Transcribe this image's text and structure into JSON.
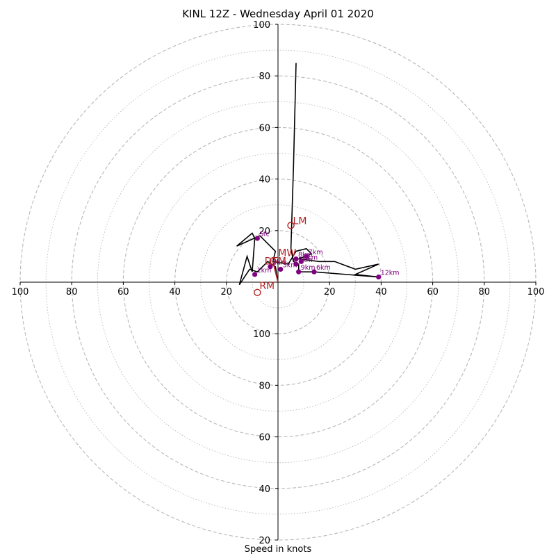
{
  "chart_data": {
    "type": "hodograph",
    "title": "KINL 12Z - Wednesday April 01 2020",
    "xlabel": "Speed in knots",
    "max_speed": 100,
    "ring_step": 10,
    "tick_labels": [
      "100",
      "80",
      "60",
      "40",
      "20",
      "20",
      "40",
      "60",
      "80",
      "100"
    ],
    "axis_values": [
      100,
      80,
      60,
      40,
      20
    ],
    "colors": {
      "trace": "#000000",
      "height_marker": "#800080",
      "motion": "#b22222",
      "grid": "#b8b8b8",
      "axis": "#000000"
    },
    "trace": [
      [
        0,
        0
      ],
      [
        -1,
        6
      ],
      [
        -4,
        8
      ],
      [
        -8,
        4
      ],
      [
        -11,
        5
      ],
      [
        -15,
        -1
      ],
      [
        -12,
        10
      ],
      [
        -10,
        4
      ],
      [
        -9,
        17
      ],
      [
        -10,
        19
      ],
      [
        -16,
        14
      ],
      [
        -7,
        18
      ],
      [
        -1,
        12
      ],
      [
        -2,
        8
      ],
      [
        4,
        7
      ],
      [
        7,
        12
      ],
      [
        11,
        13
      ],
      [
        13,
        11
      ],
      [
        8,
        9
      ],
      [
        16,
        8
      ],
      [
        22,
        8
      ],
      [
        30,
        5
      ],
      [
        39,
        7
      ],
      [
        30,
        3
      ],
      [
        39,
        2
      ],
      [
        14,
        4
      ],
      [
        8,
        4
      ],
      [
        8,
        7
      ],
      [
        6,
        8
      ],
      [
        5,
        13
      ],
      [
        6,
        45
      ],
      [
        7,
        85
      ]
    ],
    "heights": [
      {
        "label": "Sfc",
        "u": -8,
        "v": 17
      },
      {
        "label": "1km",
        "u": -9,
        "v": 3
      },
      {
        "label": "2km",
        "u": -3,
        "v": 6
      },
      {
        "label": "3km",
        "u": 1,
        "v": 5
      },
      {
        "label": "4km",
        "u": 9,
        "v": 8
      },
      {
        "label": "5km",
        "u": 7,
        "v": 7
      },
      {
        "label": "6km",
        "u": 14,
        "v": 4
      },
      {
        "label": "7km",
        "u": 11,
        "v": 10
      },
      {
        "label": "8km",
        "u": 7,
        "v": 9
      },
      {
        "label": "9km",
        "u": 8,
        "v": 4
      },
      {
        "label": "12km",
        "u": 39,
        "v": 2
      }
    ],
    "storm_motion": [
      {
        "label": "LM",
        "u": 5,
        "v": 22
      },
      {
        "label": "MW",
        "u": -1,
        "v": 9
      },
      {
        "label": "DTM",
        "u": -2,
        "v": 8
      },
      {
        "label": "RM",
        "u": -8,
        "v": -4
      }
    ],
    "motion_vector": {
      "u": 0,
      "v": 0,
      "to_u": -2,
      "to_v": 8
    }
  }
}
